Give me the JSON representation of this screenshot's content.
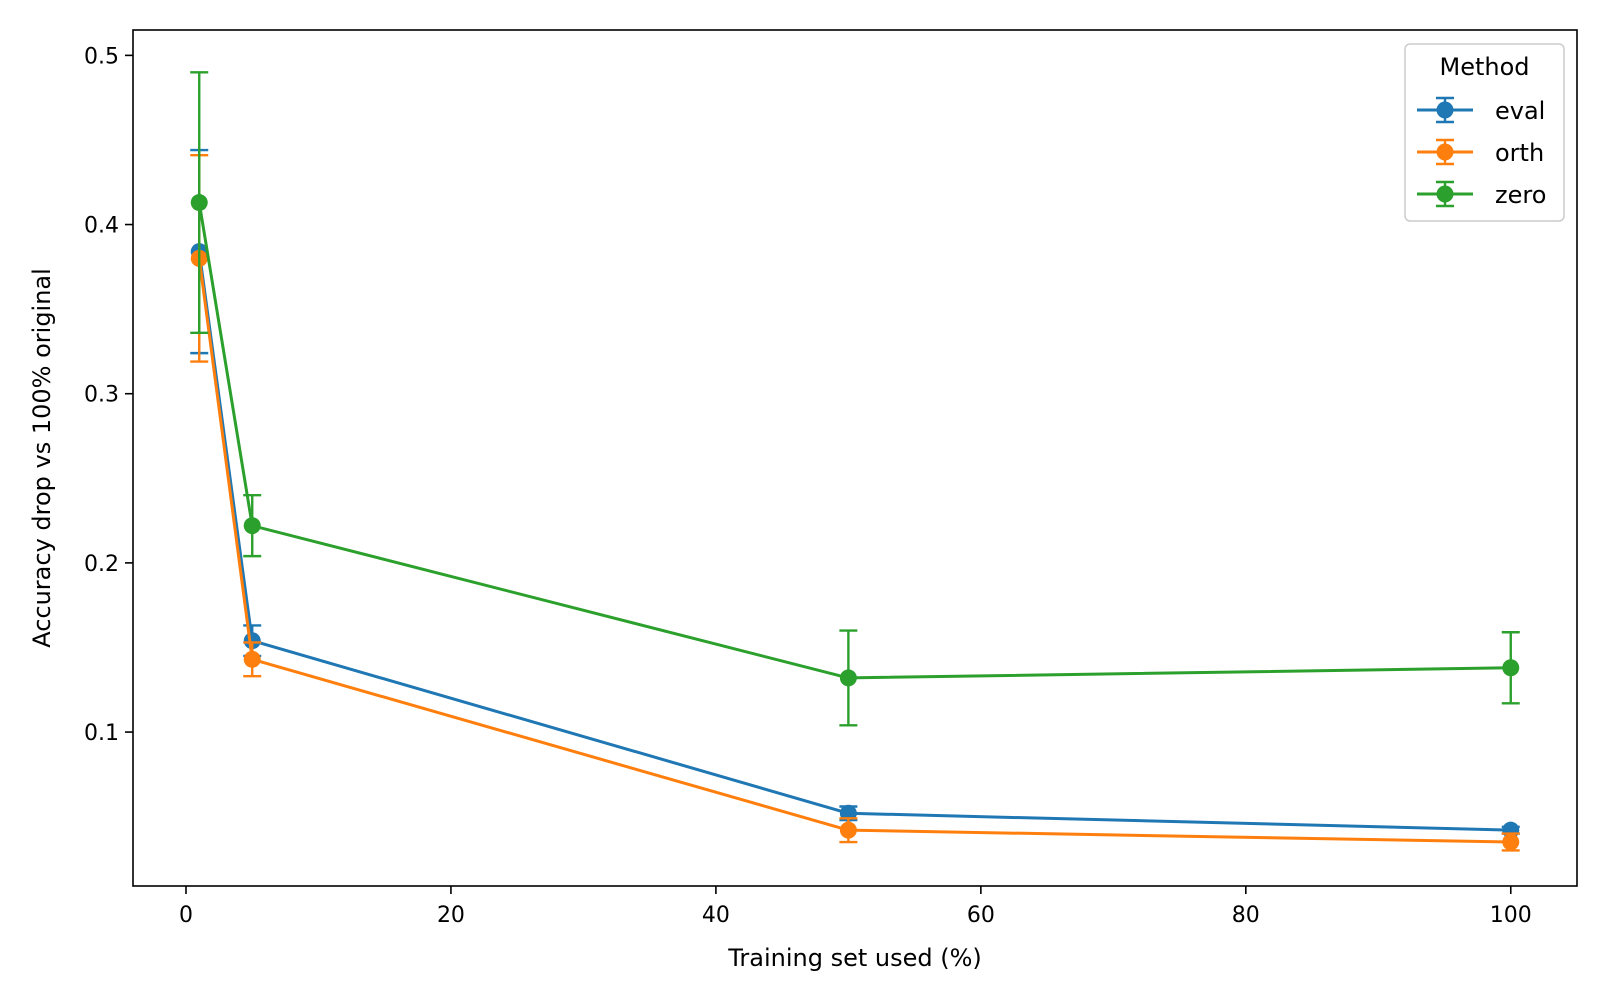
{
  "chart_data": {
    "type": "line",
    "xlabel": "Training set used (%)",
    "ylabel": "Accuracy drop vs 100% original",
    "xlim": [
      -4,
      105
    ],
    "ylim": [
      0.009,
      0.515
    ],
    "xticks": [
      0,
      20,
      40,
      60,
      80,
      100
    ],
    "yticks": [
      0.1,
      0.2,
      0.3,
      0.4,
      0.5
    ],
    "x": [
      1,
      5,
      50,
      100
    ],
    "grid": false,
    "legend": {
      "title": "Method",
      "placement": "top-right"
    },
    "series": [
      {
        "name": "eval",
        "color": "#1f77b4",
        "values": [
          0.384,
          0.154,
          0.052,
          0.042
        ],
        "errors": [
          0.06,
          0.009,
          0.004,
          0.002
        ]
      },
      {
        "name": "orth",
        "color": "#ff7f0e",
        "values": [
          0.38,
          0.143,
          0.042,
          0.035
        ],
        "errors": [
          0.061,
          0.01,
          0.007,
          0.005
        ]
      },
      {
        "name": "zero",
        "color": "#2ca02c",
        "values": [
          0.413,
          0.222,
          0.132,
          0.138
        ],
        "errors": [
          0.077,
          0.018,
          0.028,
          0.021
        ]
      }
    ]
  }
}
